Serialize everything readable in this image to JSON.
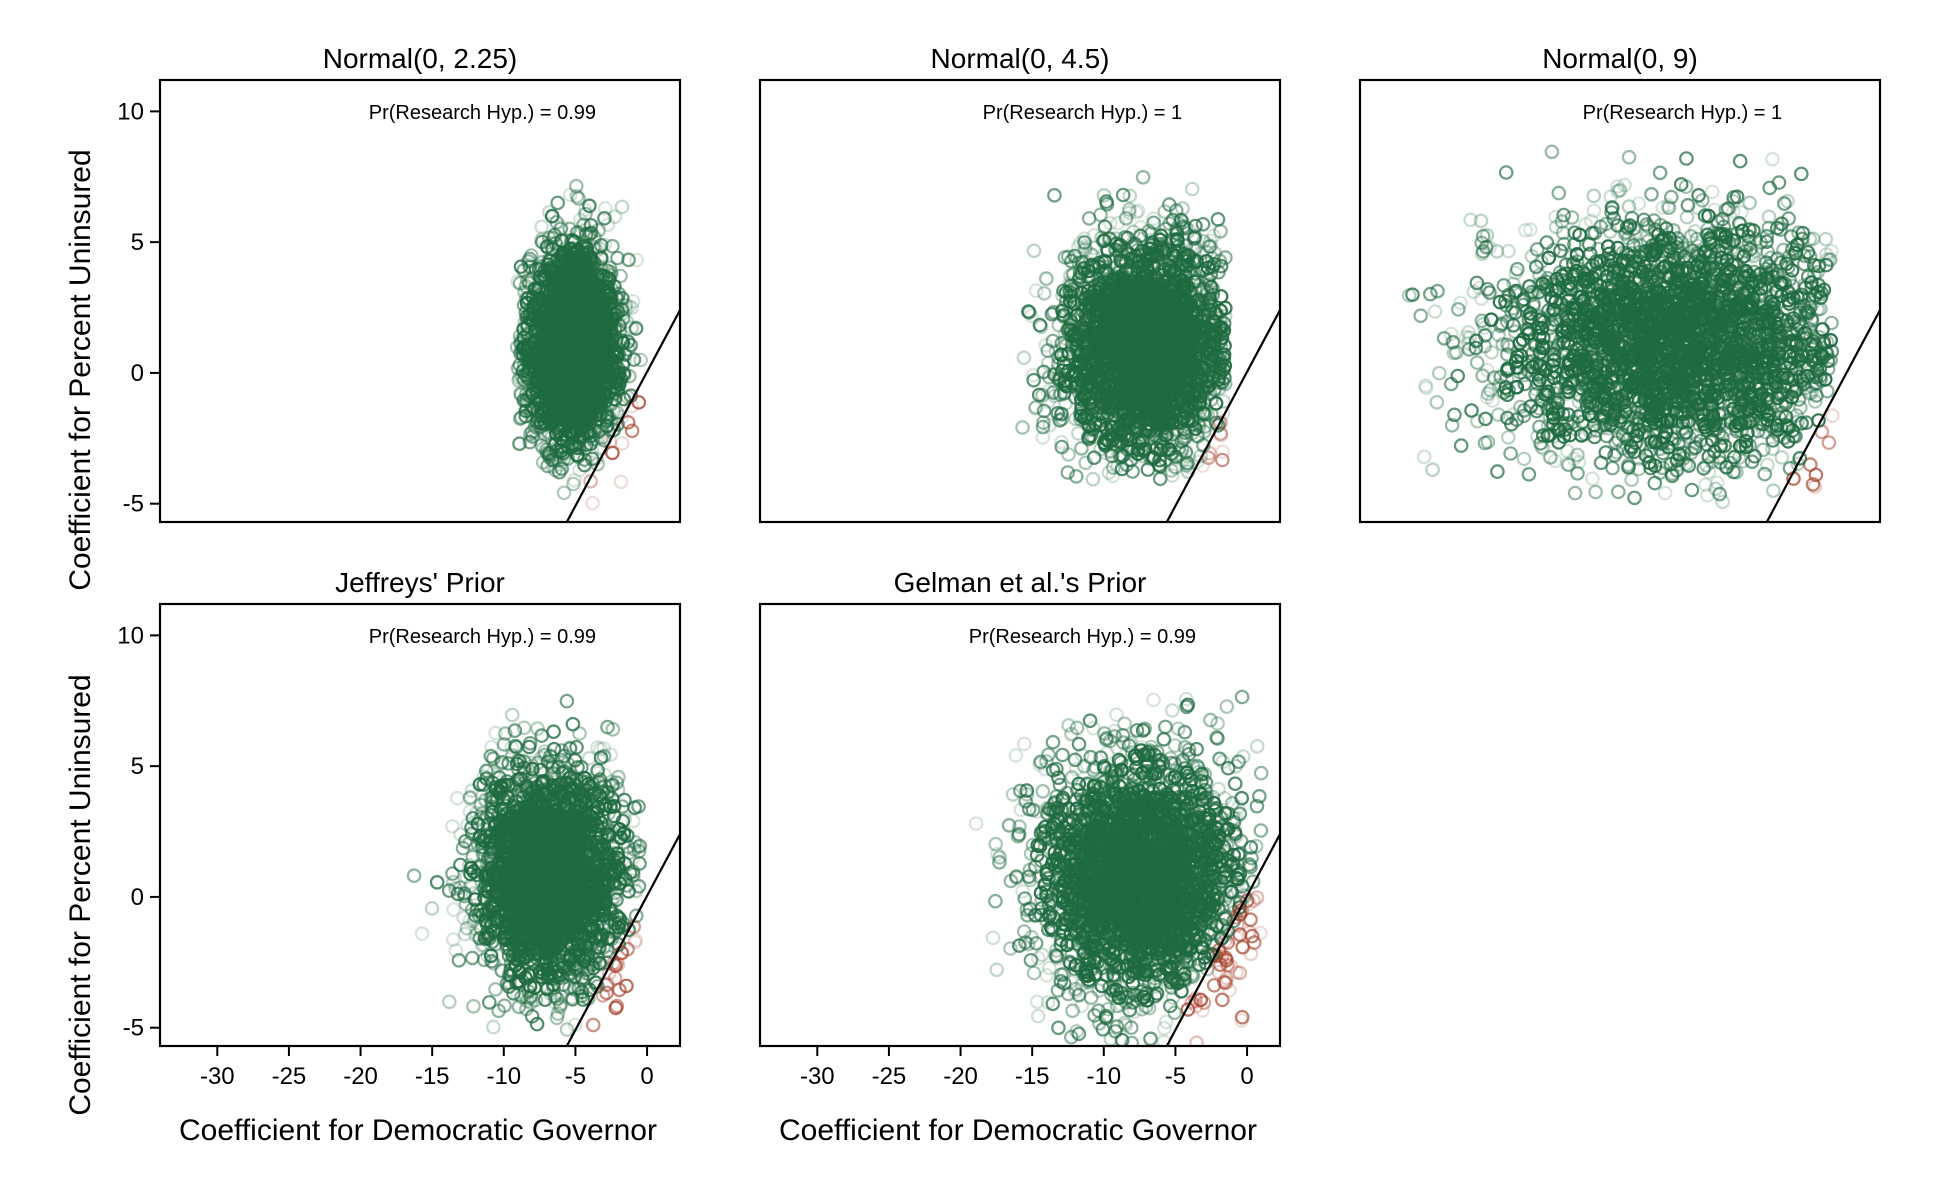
{
  "figure": {
    "ylabel": "Coefficient for Percent Uninsured",
    "xlabel": "Coefficient for Democratic Governor",
    "colors": {
      "supports_hypothesis": "#1f6b40",
      "contradicts_hypothesis": "#a6402a",
      "line": "#000000"
    },
    "point_marker": "open-circle"
  },
  "chart_data": [
    {
      "type": "scatter",
      "title": "Normal(0, 2.25)",
      "annotation": "Pr(Research Hyp.) = 0.99",
      "xlim": [
        -34,
        2.3
      ],
      "ylim": [
        -5.7,
        11.2
      ],
      "xticks": [
        "-30",
        "-25",
        "-20",
        "-15",
        "-10",
        "-5",
        "0"
      ],
      "yticks": [
        "-5",
        "0",
        "5",
        "10"
      ],
      "cloud": {
        "center": [
          -5.2,
          1.0
        ],
        "spread": [
          1.6,
          1.9
        ],
        "n": 2600,
        "x_range": [
          -9.1,
          -0.2
        ],
        "y_range": [
          -5.0,
          7.2
        ]
      },
      "boundary_line": {
        "x1": -5.6,
        "y1": -5.7,
        "x2": 2.3,
        "y2": 2.4
      }
    },
    {
      "type": "scatter",
      "title": "Normal(0, 4.5)",
      "annotation": "Pr(Research Hyp.) = 1",
      "xlim": [
        -34,
        2.3
      ],
      "ylim": [
        -5.7,
        11.2
      ],
      "xticks": [
        "-30",
        "-25",
        "-20",
        "-15",
        "-10",
        "-5",
        "0"
      ],
      "yticks": [
        "-5",
        "0",
        "5",
        "10"
      ],
      "cloud": {
        "center": [
          -7.0,
          1.0
        ],
        "spread": [
          2.9,
          2.0
        ],
        "n": 2800,
        "x_range": [
          -17.8,
          -1.5
        ],
        "y_range": [
          -4.2,
          7.8
        ]
      },
      "boundary_line": {
        "x1": -5.6,
        "y1": -5.7,
        "x2": 2.3,
        "y2": 2.4
      }
    },
    {
      "type": "scatter",
      "title": "Normal(0, 9)",
      "annotation": "Pr(Research Hyp.) = 1",
      "xlim": [
        -34,
        2.3
      ],
      "ylim": [
        -5.7,
        11.2
      ],
      "xticks": [
        "-30",
        "-25",
        "-20",
        "-15",
        "-10",
        "-5",
        "0"
      ],
      "yticks": [
        "-5",
        "0",
        "5",
        "10"
      ],
      "cloud": {
        "center": [
          -12.0,
          1.2
        ],
        "spread": [
          6.0,
          2.3
        ],
        "n": 3000,
        "x_range": [
          -31.5,
          -1.0
        ],
        "y_range": [
          -5.0,
          10.6
        ]
      },
      "boundary_line": {
        "x1": -5.6,
        "y1": -5.7,
        "x2": 2.3,
        "y2": 2.4
      }
    },
    {
      "type": "scatter",
      "title": "Jeffreys' Prior",
      "annotation": "Pr(Research Hyp.) = 0.99",
      "xlim": [
        -34,
        2.3
      ],
      "ylim": [
        -5.7,
        11.2
      ],
      "xticks": [
        "-30",
        "-25",
        "-20",
        "-15",
        "-10",
        "-5",
        "0"
      ],
      "yticks": [
        "-5",
        "0",
        "5",
        "10"
      ],
      "cloud": {
        "center": [
          -6.8,
          0.8
        ],
        "spread": [
          2.6,
          2.0
        ],
        "n": 2700,
        "x_range": [
          -16.3,
          -0.5
        ],
        "y_range": [
          -5.3,
          7.7
        ]
      },
      "boundary_line": {
        "x1": -5.6,
        "y1": -5.7,
        "x2": 2.3,
        "y2": 2.4
      }
    },
    {
      "type": "scatter",
      "title": "Gelman et al.'s Prior",
      "annotation": "Pr(Research Hyp.) = 0.99",
      "xlim": [
        -34,
        2.3
      ],
      "ylim": [
        -5.7,
        11.2
      ],
      "xticks": [
        "-30",
        "-25",
        "-20",
        "-15",
        "-10",
        "-5",
        "0"
      ],
      "yticks": [
        "-5",
        "0",
        "5",
        "10"
      ],
      "cloud": {
        "center": [
          -7.5,
          0.8
        ],
        "spread": [
          3.4,
          2.2
        ],
        "n": 2900,
        "x_range": [
          -19.5,
          1.0
        ],
        "y_range": [
          -5.6,
          7.7
        ]
      },
      "boundary_line": {
        "x1": -5.6,
        "y1": -5.7,
        "x2": 2.3,
        "y2": 2.4
      }
    }
  ]
}
